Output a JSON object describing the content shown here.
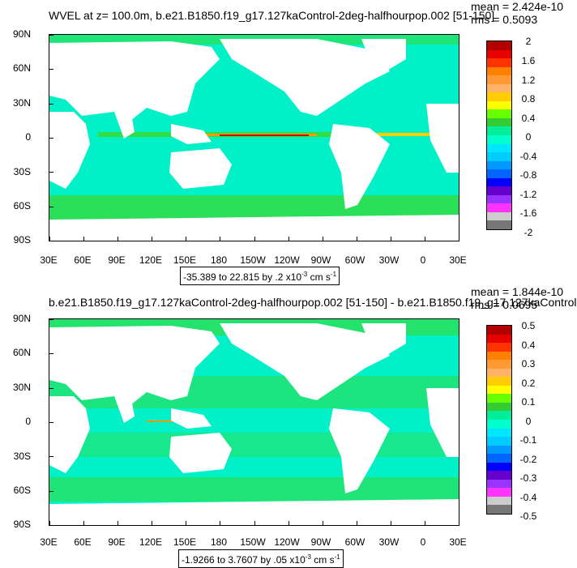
{
  "panels": [
    {
      "title": "WVEL at z= 100.0m, b.e21.B1850.f19_g17.127kaControl-2deg-halfhourpop.002 [51-150]",
      "mean": "mean = 2.424e-10",
      "rms": "rms = 0.5093",
      "info": "-35.389 to 22.815 by .2 x10",
      "info_exp": "-3",
      "info_units": " cm s",
      "info_units_exp": "-1",
      "lat_labels": [
        "90N",
        "60N",
        "30N",
        "0",
        "30S",
        "60S",
        "90S"
      ],
      "lon_labels": [
        "30E",
        "60E",
        "90E",
        "120E",
        "150E",
        "180",
        "150W",
        "120W",
        "90W",
        "60W",
        "30W",
        "0",
        "30E"
      ],
      "colorbar_labels": [
        "2",
        "1.6",
        "1.2",
        "0.8",
        "0.4",
        "0",
        "-0.4",
        "-0.8",
        "-1.2",
        "-1.6",
        "-2"
      ],
      "colorbar_colors": [
        "#b30000",
        "#e60000",
        "#ff3300",
        "#ff8000",
        "#ff9933",
        "#ffb366",
        "#ffcc00",
        "#ffff00",
        "#66ff00",
        "#33cc33",
        "#00ee99",
        "#00ffcc",
        "#00e6ff",
        "#00ccff",
        "#0099ff",
        "#0066ff",
        "#0000ff",
        "#6600cc",
        "#9933ff",
        "#ff33ff",
        "#cccccc",
        "#777777"
      ]
    },
    {
      "title": "b.e21.B1850.f19_g17.127kaControl-2deg-halfhourpop.002 [51-150] - b.e21.B1850.f19_g17.127kaControl",
      "mean": "mean = 1.844e-10",
      "rms": "rms = 0.0695",
      "info": "-1.9266 to 3.7607 by .05 x10",
      "info_exp": "-3",
      "info_units": " cm s",
      "info_units_exp": "-1",
      "lat_labels": [
        "90N",
        "60N",
        "30N",
        "0",
        "30S",
        "60S",
        "90S"
      ],
      "lon_labels": [
        "30E",
        "60E",
        "90E",
        "120E",
        "150E",
        "180",
        "150W",
        "120W",
        "90W",
        "60W",
        "30W",
        "0",
        "30E"
      ],
      "colorbar_labels": [
        "0.5",
        "0.4",
        "0.3",
        "0.2",
        "0.1",
        "0",
        "-0.1",
        "-0.2",
        "-0.3",
        "-0.4",
        "-0.5"
      ],
      "colorbar_colors": [
        "#b30000",
        "#e60000",
        "#ff3300",
        "#ff8000",
        "#ff9933",
        "#ffb366",
        "#ffcc00",
        "#ffff00",
        "#66ff00",
        "#33cc33",
        "#00ee99",
        "#00ffcc",
        "#00e6ff",
        "#00ccff",
        "#0099ff",
        "#0066ff",
        "#0000ff",
        "#6600cc",
        "#9933ff",
        "#ff33ff",
        "#cccccc",
        "#777777"
      ]
    }
  ],
  "colors": {
    "ocean_top": "#00f0c8",
    "ocean_bottom": "#00f0c8",
    "land": "#ffffff",
    "green_band": "#33dd44",
    "equator_red": "#cc0000",
    "equator_orange": "#ff9900"
  }
}
